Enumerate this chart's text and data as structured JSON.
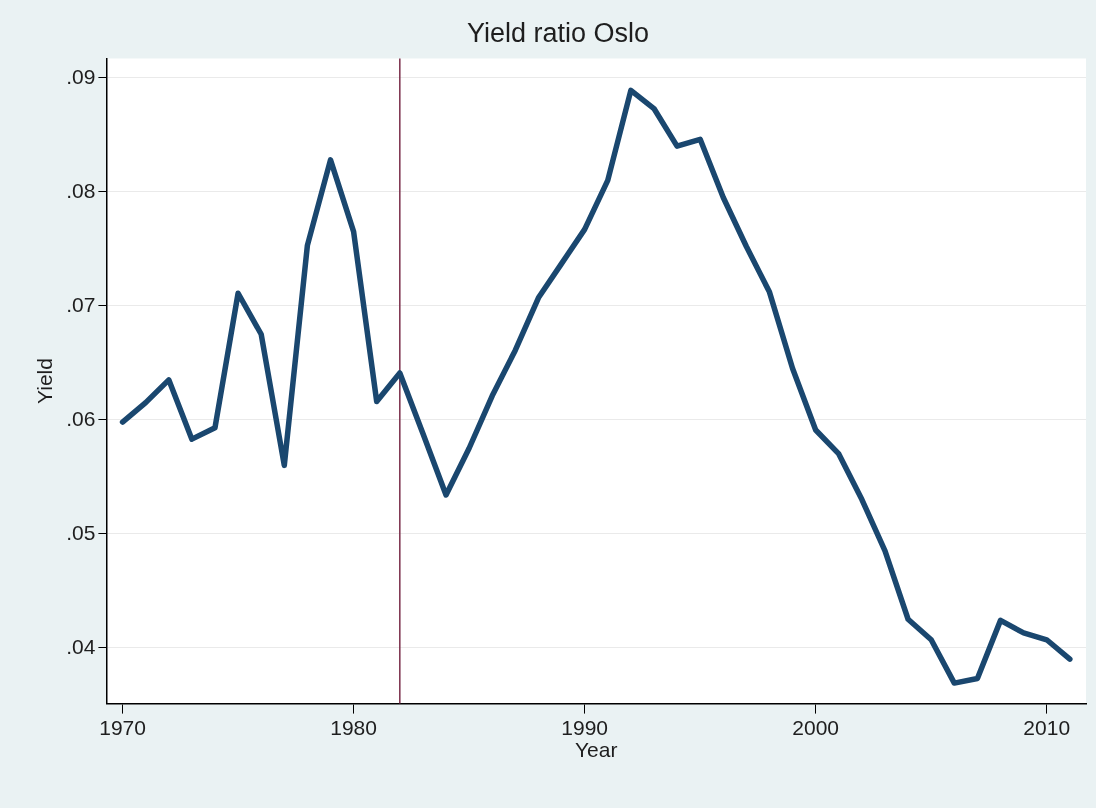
{
  "chart_data": {
    "type": "line",
    "title": "Yield ratio Oslo",
    "xlabel": "Year",
    "ylabel": "Yield",
    "x": [
      1970,
      1971,
      1972,
      1973,
      1974,
      1975,
      1976,
      1977,
      1978,
      1979,
      1980,
      1981,
      1982,
      1983,
      1984,
      1985,
      1986,
      1987,
      1988,
      1989,
      1990,
      1991,
      1992,
      1993,
      1994,
      1995,
      1996,
      1997,
      1998,
      1999,
      2000,
      2001,
      2002,
      2003,
      2004,
      2005,
      2006,
      2007,
      2008,
      2009,
      2010,
      2011
    ],
    "series": [
      {
        "color": "#1a476f",
        "values": [
          0.0598,
          0.0615,
          0.0635,
          0.0583,
          0.0593,
          0.0711,
          0.0675,
          0.056,
          0.0753,
          0.0828,
          0.0765,
          0.0616,
          0.0641,
          0.0588,
          0.0534,
          0.0575,
          0.0621,
          0.0661,
          0.0707,
          0.0737,
          0.0767,
          0.081,
          0.0889,
          0.0873,
          0.084,
          0.0846,
          0.0795,
          0.0752,
          0.0712,
          0.0645,
          0.0591,
          0.057,
          0.053,
          0.0485,
          0.0425,
          0.0407,
          0.0369,
          0.0373,
          0.0424,
          0.0413,
          0.0407,
          0.039
        ]
      }
    ],
    "xlim": [
      1969.3,
      2011.7
    ],
    "xticks": [
      1970,
      1980,
      1990,
      2000,
      2010
    ],
    "ylim": [
      0.0351,
      0.0917
    ],
    "yticks": [
      {
        "value": 0.04,
        "label": ".04"
      },
      {
        "value": 0.05,
        "label": ".05"
      },
      {
        "value": 0.06,
        "label": ".06"
      },
      {
        "value": 0.07,
        "label": ".07"
      },
      {
        "value": 0.08,
        "label": ".08"
      },
      {
        "value": 0.09,
        "label": ".09"
      }
    ],
    "ref_lines": [
      {
        "axis": "x",
        "value": 1982,
        "color": "#7a2d4a"
      }
    ],
    "grid": "y",
    "legend": false,
    "marker": "none",
    "line_style": "solid"
  }
}
